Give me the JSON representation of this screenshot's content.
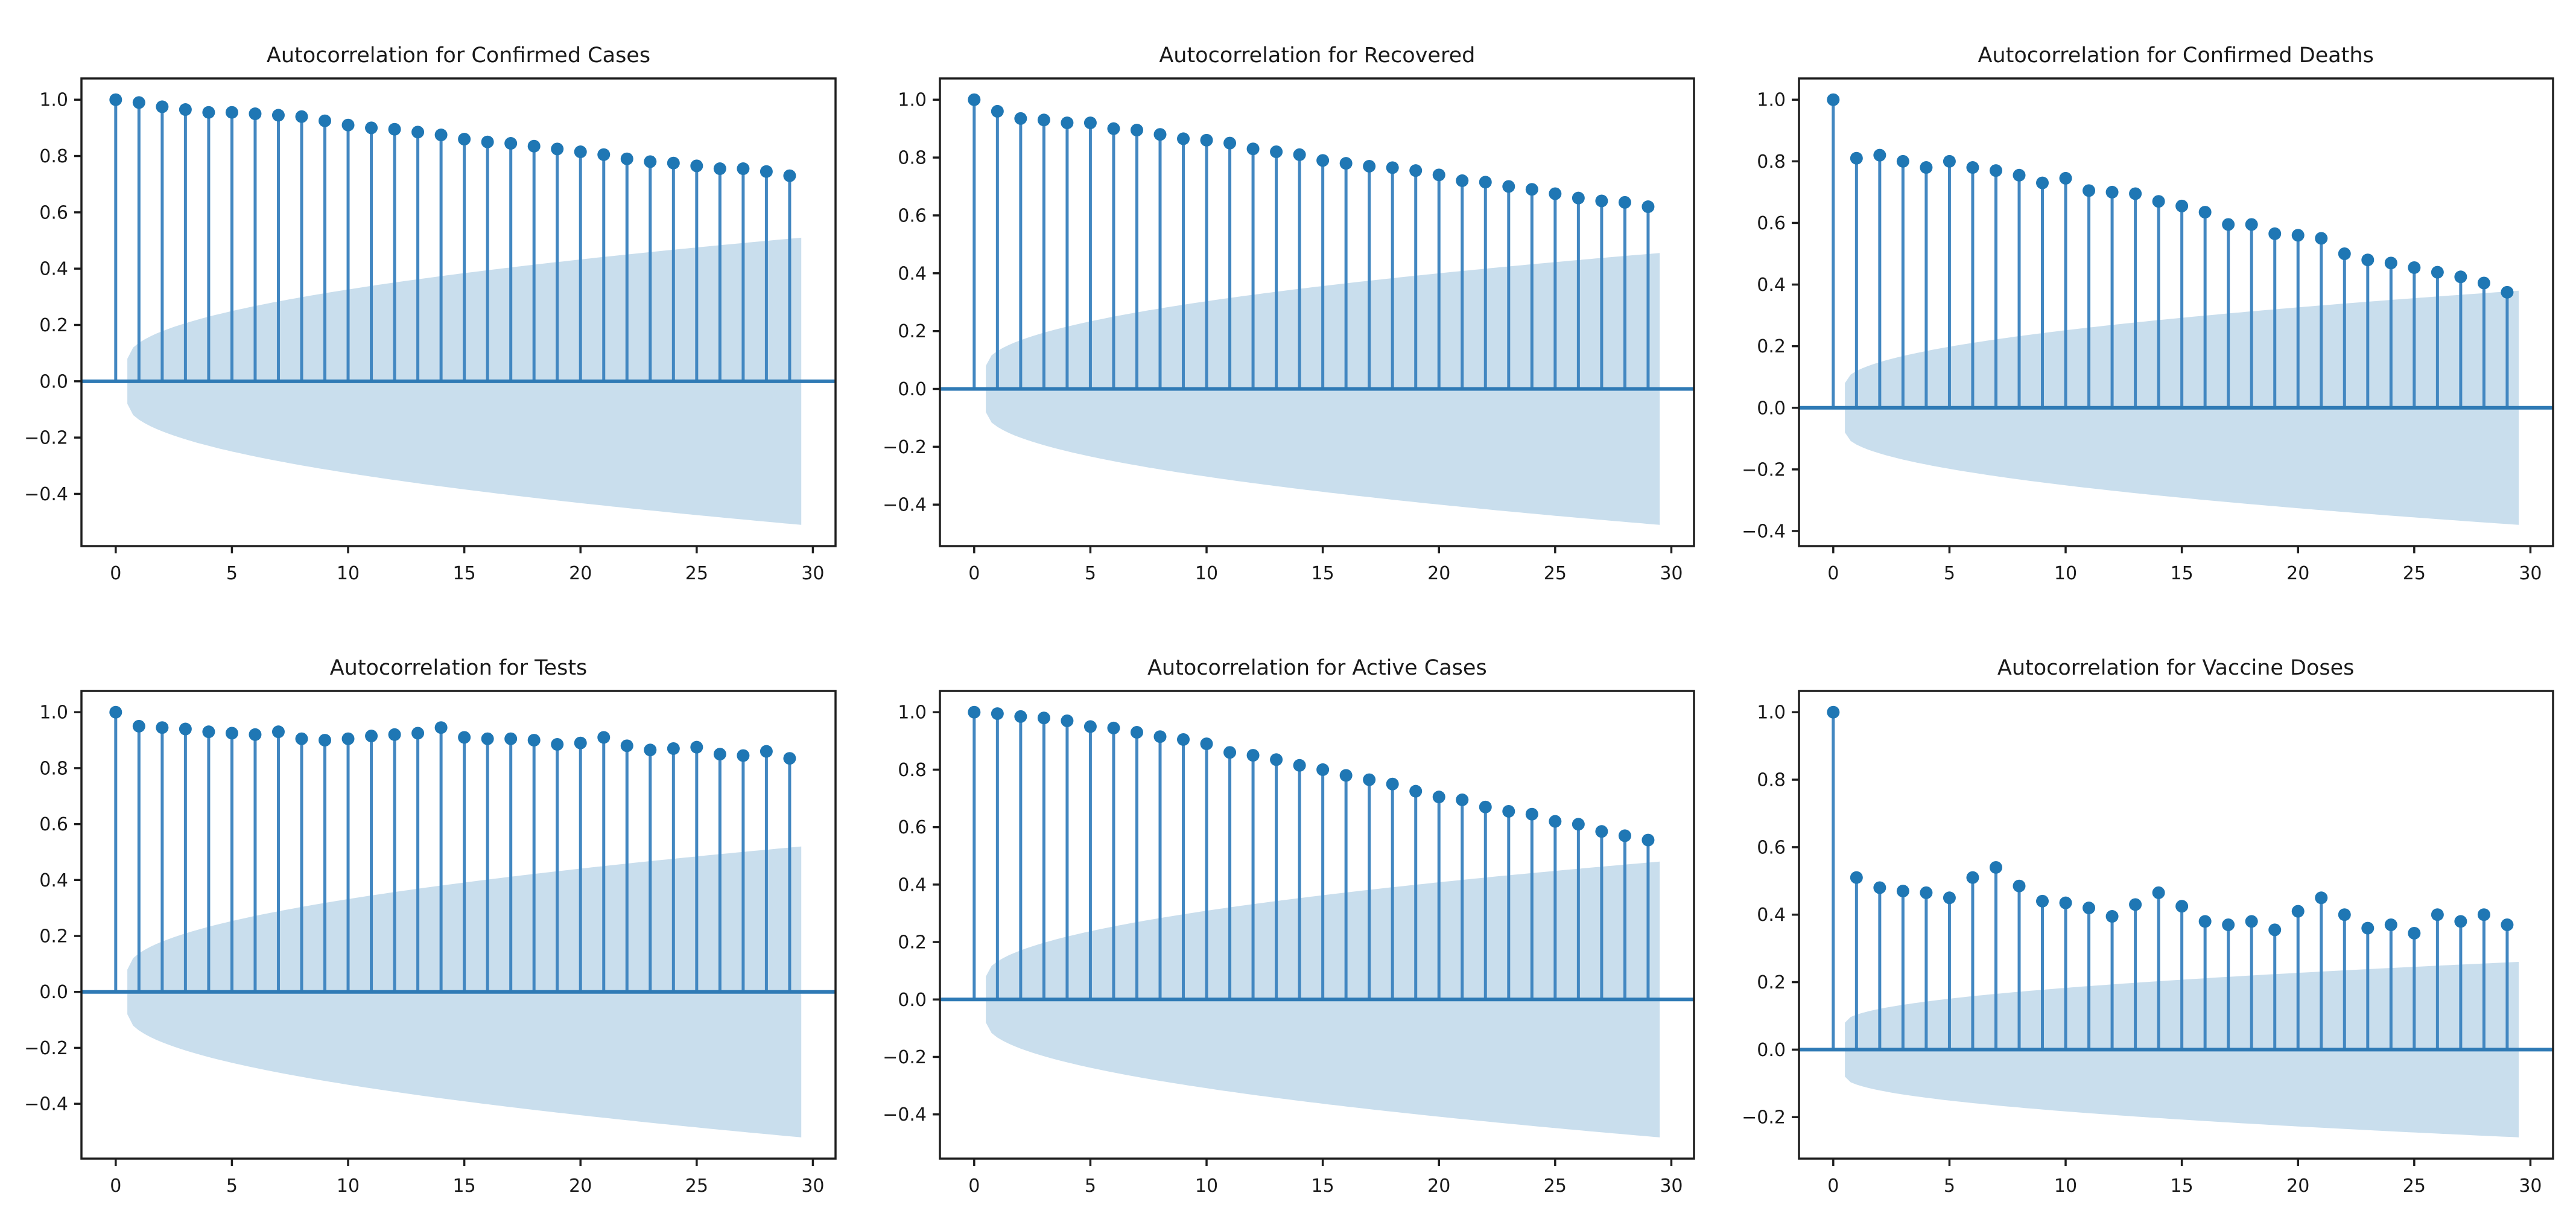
{
  "figure": {
    "background": "#ffffff",
    "description": "Grid of six autocorrelation stem plots (ACF) with expanding confidence bands"
  },
  "style": {
    "marker_color": "#1f77b4",
    "stem_color": "#4287c1",
    "zero_line_color": "#2f7ab5",
    "band_fill": "rgba(31,119,180,0.24)",
    "spine_color": "#1f1f1f",
    "text_color": "#1a1a1a"
  },
  "chart_data": [
    {
      "type": "stem",
      "title": "Autocorrelation for Confirmed Cases",
      "xlabel": "",
      "ylabel": "",
      "grid": false,
      "legend": null,
      "x_range": [
        0,
        29
      ],
      "acf": [
        1.0,
        0.99,
        0.975,
        0.965,
        0.955,
        0.955,
        0.95,
        0.945,
        0.94,
        0.925,
        0.91,
        0.9,
        0.895,
        0.885,
        0.875,
        0.86,
        0.85,
        0.845,
        0.835,
        0.825,
        0.815,
        0.805,
        0.79,
        0.78,
        0.775,
        0.765,
        0.755,
        0.755,
        0.745,
        0.73
      ],
      "conf_band": {
        "halfwidth_at_lag1": 0.08,
        "halfwidth_at_lag29": 0.51,
        "shape": "sqrt",
        "centered_at": 0
      },
      "xticks": [
        0,
        5,
        10,
        15,
        20,
        25,
        30
      ],
      "ytick_step": 0.2
    },
    {
      "type": "stem",
      "title": "Autocorrelation for Recovered",
      "xlabel": "",
      "ylabel": "",
      "grid": false,
      "legend": null,
      "x_range": [
        0,
        29
      ],
      "acf": [
        1.0,
        0.96,
        0.935,
        0.93,
        0.92,
        0.92,
        0.9,
        0.895,
        0.88,
        0.865,
        0.86,
        0.85,
        0.83,
        0.82,
        0.81,
        0.79,
        0.78,
        0.77,
        0.765,
        0.755,
        0.74,
        0.72,
        0.715,
        0.7,
        0.69,
        0.675,
        0.66,
        0.65,
        0.645,
        0.63
      ],
      "conf_band": {
        "halfwidth_at_lag1": 0.08,
        "halfwidth_at_lag29": 0.47,
        "shape": "sqrt",
        "centered_at": 0
      },
      "xticks": [
        0,
        5,
        10,
        15,
        20,
        25,
        30
      ],
      "ytick_step": 0.2
    },
    {
      "type": "stem",
      "title": "Autocorrelation for Confirmed Deaths",
      "xlabel": "",
      "ylabel": "",
      "grid": false,
      "legend": null,
      "x_range": [
        0,
        29
      ],
      "acf": [
        1.0,
        0.81,
        0.82,
        0.8,
        0.78,
        0.8,
        0.78,
        0.77,
        0.755,
        0.73,
        0.745,
        0.705,
        0.7,
        0.695,
        0.67,
        0.655,
        0.635,
        0.595,
        0.595,
        0.565,
        0.56,
        0.55,
        0.5,
        0.48,
        0.47,
        0.455,
        0.44,
        0.425,
        0.405,
        0.375
      ],
      "conf_band": {
        "halfwidth_at_lag1": 0.08,
        "halfwidth_at_lag29": 0.38,
        "shape": "sqrt",
        "centered_at": 0
      },
      "xticks": [
        0,
        5,
        10,
        15,
        20,
        25,
        30
      ],
      "ytick_step": 0.2
    },
    {
      "type": "stem",
      "title": "Autocorrelation for Tests",
      "xlabel": "",
      "ylabel": "",
      "grid": false,
      "legend": null,
      "x_range": [
        0,
        29
      ],
      "acf": [
        1.0,
        0.95,
        0.945,
        0.94,
        0.93,
        0.925,
        0.92,
        0.93,
        0.905,
        0.9,
        0.905,
        0.915,
        0.92,
        0.925,
        0.945,
        0.91,
        0.905,
        0.905,
        0.9,
        0.885,
        0.89,
        0.91,
        0.88,
        0.865,
        0.87,
        0.875,
        0.85,
        0.845,
        0.86,
        0.835
      ],
      "conf_band": {
        "halfwidth_at_lag1": 0.08,
        "halfwidth_at_lag29": 0.52,
        "shape": "sqrt",
        "centered_at": 0
      },
      "xticks": [
        0,
        5,
        10,
        15,
        20,
        25,
        30
      ],
      "ytick_step": 0.2
    },
    {
      "type": "stem",
      "title": "Autocorrelation for Active Cases",
      "xlabel": "",
      "ylabel": "",
      "grid": false,
      "legend": null,
      "x_range": [
        0,
        29
      ],
      "acf": [
        1.0,
        0.995,
        0.985,
        0.98,
        0.97,
        0.95,
        0.945,
        0.93,
        0.915,
        0.905,
        0.89,
        0.86,
        0.85,
        0.835,
        0.815,
        0.8,
        0.78,
        0.765,
        0.75,
        0.725,
        0.705,
        0.695,
        0.67,
        0.655,
        0.645,
        0.62,
        0.61,
        0.585,
        0.57,
        0.555
      ],
      "conf_band": {
        "halfwidth_at_lag1": 0.08,
        "halfwidth_at_lag29": 0.48,
        "shape": "sqrt",
        "centered_at": 0
      },
      "xticks": [
        0,
        5,
        10,
        15,
        20,
        25,
        30
      ],
      "ytick_step": 0.2
    },
    {
      "type": "stem",
      "title": "Autocorrelation for Vaccine Doses",
      "xlabel": "",
      "ylabel": "",
      "grid": false,
      "legend": null,
      "x_range": [
        0,
        29
      ],
      "acf": [
        1.0,
        0.51,
        0.48,
        0.47,
        0.465,
        0.45,
        0.51,
        0.54,
        0.485,
        0.44,
        0.435,
        0.42,
        0.395,
        0.43,
        0.465,
        0.425,
        0.38,
        0.37,
        0.38,
        0.355,
        0.41,
        0.45,
        0.4,
        0.36,
        0.37,
        0.345,
        0.4,
        0.38,
        0.4,
        0.37
      ],
      "conf_band": {
        "halfwidth_at_lag1": 0.08,
        "halfwidth_at_lag29": 0.26,
        "shape": "sqrt",
        "centered_at": 0
      },
      "xticks": [
        0,
        5,
        10,
        15,
        20,
        25,
        30
      ],
      "ytick_step": 0.2
    }
  ]
}
